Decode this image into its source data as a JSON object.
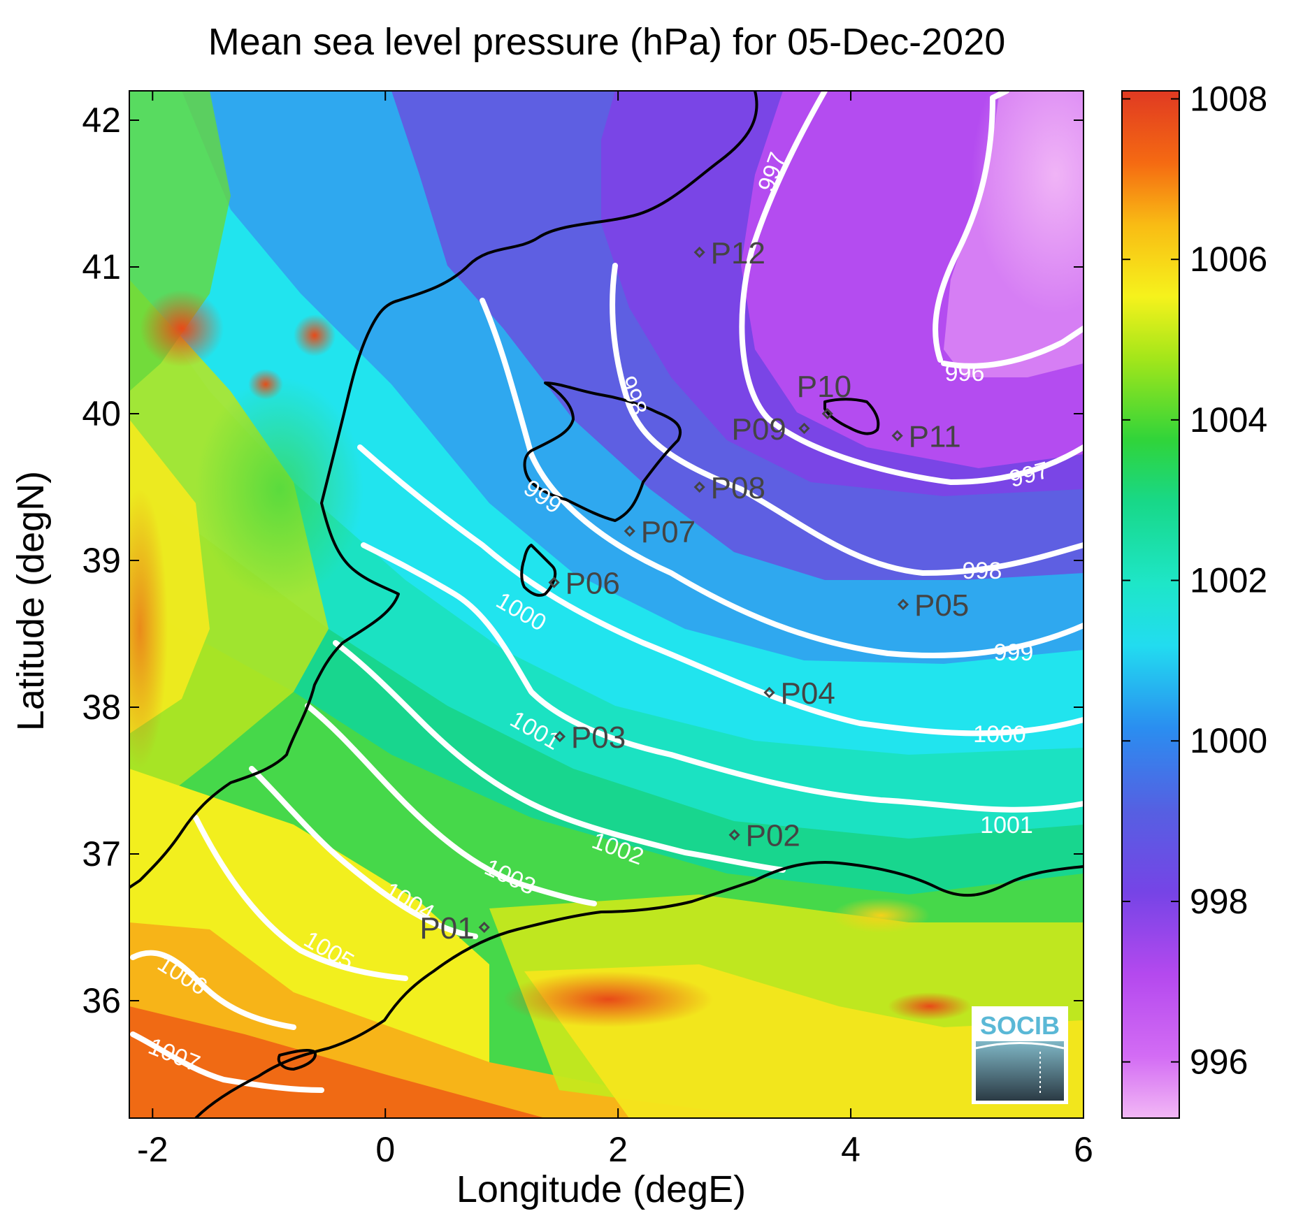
{
  "title": "Mean sea level pressure (hPa) for 05-Dec-2020",
  "x_axis": {
    "label": "Longitude (degE)",
    "ticks": [
      "-2",
      "0",
      "2",
      "4",
      "6"
    ],
    "tick_values": [
      -2,
      0,
      2,
      4,
      6
    ],
    "range": [
      -2.2,
      6.0
    ]
  },
  "y_axis": {
    "label": "Latitude (degN)",
    "ticks": [
      "36",
      "37",
      "38",
      "39",
      "40",
      "41",
      "42"
    ],
    "tick_values": [
      36,
      37,
      38,
      39,
      40,
      41,
      42
    ],
    "range": [
      35.2,
      42.2
    ]
  },
  "colorbar": {
    "ticks": [
      "996",
      "998",
      "1000",
      "1002",
      "1004",
      "1006",
      "1008"
    ],
    "tick_values": [
      996,
      998,
      1000,
      1002,
      1004,
      1006,
      1008
    ],
    "range": [
      995.3,
      1008.1
    ],
    "colormap": [
      "#f2b8f5",
      "#c84ef2",
      "#7744e6",
      "#2a8ef0",
      "#22e6ef",
      "#18d58c",
      "#38d836",
      "#a8e818",
      "#f8f21a",
      "#f9b814",
      "#f56512",
      "#e33d20"
    ]
  },
  "stations": [
    {
      "name": "P01",
      "lon": 0.85,
      "lat": 36.5
    },
    {
      "name": "P02",
      "lon": 3.0,
      "lat": 37.13
    },
    {
      "name": "P03",
      "lon": 1.5,
      "lat": 37.8
    },
    {
      "name": "P04",
      "lon": 3.3,
      "lat": 38.1
    },
    {
      "name": "P05",
      "lon": 4.45,
      "lat": 38.7
    },
    {
      "name": "P06",
      "lon": 1.45,
      "lat": 38.85
    },
    {
      "name": "P07",
      "lon": 2.1,
      "lat": 39.2
    },
    {
      "name": "P08",
      "lon": 2.7,
      "lat": 39.5
    },
    {
      "name": "P09",
      "lon": 3.6,
      "lat": 39.9
    },
    {
      "name": "P10",
      "lon": 3.8,
      "lat": 40.0
    },
    {
      "name": "P11",
      "lon": 4.4,
      "lat": 39.85
    },
    {
      "name": "P12",
      "lon": 2.7,
      "lat": 41.1
    }
  ],
  "contour_labels": [
    "996",
    "997",
    "997",
    "998",
    "998",
    "999",
    "999",
    "1000",
    "1000",
    "1001",
    "1001",
    "1002",
    "1003",
    "1004",
    "1005",
    "1006",
    "1007"
  ],
  "logo": {
    "text": "SOCIB"
  },
  "colors": {
    "contour": "#ffffff",
    "coastline": "#000000",
    "station_marker": "#444444"
  }
}
